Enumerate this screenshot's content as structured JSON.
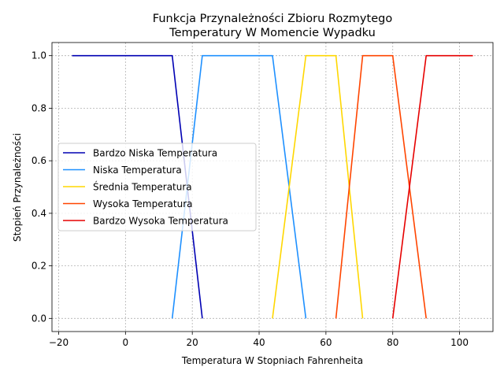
{
  "chart_data": {
    "type": "line",
    "title_lines": [
      "Funkcja Przynależności Zbioru Rozmytego",
      "Temperatury W Momencie Wypadku"
    ],
    "xlabel": "Temperatura W Stopniach Fahrenheita",
    "ylabel": "Stopień Przynależności",
    "xlim": [
      -22,
      110
    ],
    "ylim": [
      -0.05,
      1.05
    ],
    "xticks": [
      -20,
      0,
      20,
      40,
      60,
      80,
      100
    ],
    "xtick_labels": [
      "−20",
      "0",
      "20",
      "40",
      "60",
      "80",
      "100"
    ],
    "yticks": [
      0.0,
      0.2,
      0.4,
      0.6,
      0.8,
      1.0
    ],
    "ytick_labels": [
      "0.0",
      "0.2",
      "0.4",
      "0.6",
      "0.8",
      "1.0"
    ],
    "grid": true,
    "legend_position": "center-left",
    "series": [
      {
        "name": "Bardzo Niska Temperatura",
        "color": "#0000b3",
        "x": [
          -16,
          14,
          23
        ],
        "y": [
          1,
          1,
          0
        ]
      },
      {
        "name": "Niska Temperatura",
        "color": "#1e90ff",
        "x": [
          14,
          23,
          44,
          54
        ],
        "y": [
          0,
          1,
          1,
          0
        ]
      },
      {
        "name": "Średnia Temperatura",
        "color": "#ffd700",
        "x": [
          44,
          54,
          63,
          71
        ],
        "y": [
          0,
          1,
          1,
          0
        ]
      },
      {
        "name": "Wysoka Temperatura",
        "color": "#ff4500",
        "x": [
          63,
          71,
          80,
          90
        ],
        "y": [
          0,
          1,
          1,
          0
        ]
      },
      {
        "name": "Bardzo Wysoka Temperatura",
        "color": "#e60000",
        "x": [
          80,
          90,
          104
        ],
        "y": [
          0,
          1,
          1
        ]
      }
    ]
  }
}
